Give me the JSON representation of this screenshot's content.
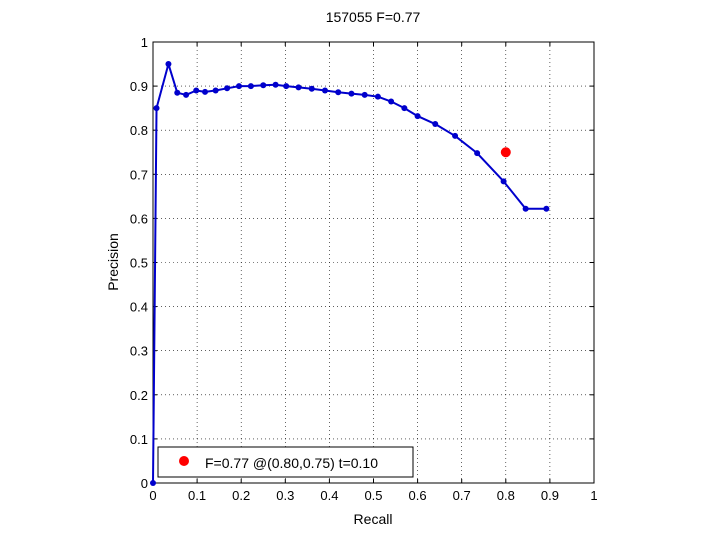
{
  "chart_data": {
    "type": "line",
    "title": "157055 F=0.77",
    "xlabel": "Recall",
    "ylabel": "Precision",
    "xlim": [
      0,
      1
    ],
    "ylim": [
      0,
      1
    ],
    "xticks": [
      "0",
      "0.1",
      "0.2",
      "0.3",
      "0.4",
      "0.5",
      "0.6",
      "0.7",
      "0.8",
      "0.9",
      "1"
    ],
    "yticks": [
      "0",
      "0.1",
      "0.2",
      "0.3",
      "0.4",
      "0.5",
      "0.6",
      "0.7",
      "0.8",
      "0.9",
      "1"
    ],
    "grid": true,
    "series": [
      {
        "color": "#0000cc",
        "x": [
          0.0,
          0.008,
          0.035,
          0.055,
          0.075,
          0.098,
          0.118,
          0.142,
          0.168,
          0.195,
          0.222,
          0.25,
          0.278,
          0.302,
          0.33,
          0.36,
          0.39,
          0.42,
          0.45,
          0.48,
          0.51,
          0.54,
          0.57,
          0.6,
          0.64,
          0.685,
          0.735,
          0.795,
          0.845,
          0.892
        ],
        "y": [
          0.0,
          0.85,
          0.95,
          0.885,
          0.88,
          0.89,
          0.887,
          0.89,
          0.895,
          0.9,
          0.9,
          0.902,
          0.903,
          0.9,
          0.897,
          0.894,
          0.89,
          0.886,
          0.883,
          0.88,
          0.876,
          0.865,
          0.85,
          0.832,
          0.814,
          0.787,
          0.748,
          0.684,
          0.622,
          0.622
        ]
      }
    ],
    "highlight": {
      "x": 0.8,
      "y": 0.75,
      "color": "#ff0000"
    },
    "legend": {
      "text": "F=0.77 @(0.80,0.75) t=0.10",
      "placement": "bottom-left"
    }
  }
}
